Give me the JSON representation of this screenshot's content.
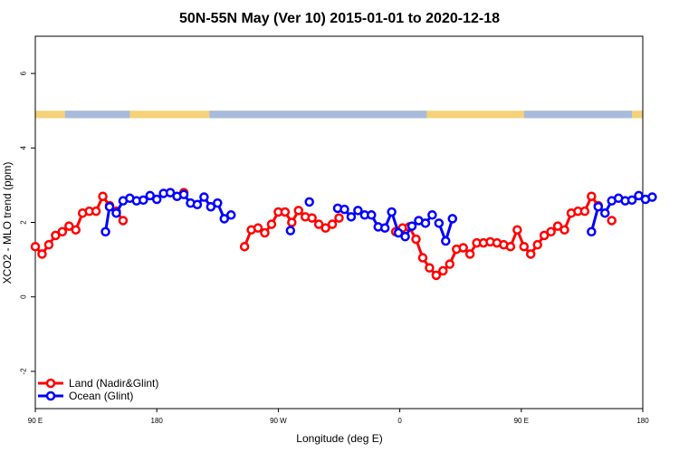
{
  "chart_data": {
    "type": "line",
    "title": "50N-55N May (Ver 10)   2015-01-01 to 2020-12-18",
    "xlabel": "Longitude (deg E)",
    "ylabel": "XCO2 - MLO trend (ppm)",
    "x_tick_labels": [
      "90 E",
      "180",
      "90 W",
      "0",
      "90 E",
      "180"
    ],
    "y_tick_labels": [
      "-2",
      "0",
      "2",
      "4",
      "6"
    ],
    "y_ticks": [
      -2,
      0,
      2,
      4,
      6
    ],
    "ylim": [
      -3,
      7
    ],
    "grid": false,
    "legend_position": "bottom-left",
    "land_mask_band": {
      "y_range": [
        4.8,
        5.0
      ],
      "land_color": "#f5d27a",
      "ocean_color": "#a7bbdc"
    },
    "series": [
      {
        "name": "Land (Nadir&Glint)",
        "color": "#ff0000",
        "segments": [
          {
            "x": [
              90,
              95,
              100,
              105,
              110,
              115,
              120,
              125,
              130,
              135,
              140,
              145,
              150,
              155
            ],
            "y": [
              1.35,
              1.15,
              1.4,
              1.65,
              1.75,
              1.9,
              1.8,
              2.25,
              2.3,
              2.3,
              2.7,
              2.45,
              2.3,
              2.05
            ]
          },
          {
            "x": [
              200
            ],
            "y": [
              2.8
            ]
          },
          {
            "x": [
              245,
              250,
              255,
              260,
              265,
              270,
              275,
              280,
              285,
              290,
              295,
              300,
              305,
              310,
              315
            ],
            "y": [
              1.35,
              1.8,
              1.85,
              1.72,
              1.95,
              2.28,
              2.28,
              2.0,
              2.32,
              2.15,
              2.12,
              1.95,
              1.85,
              1.95,
              2.12
            ]
          },
          {
            "x": [
              357,
              362,
              367,
              372,
              377,
              382,
              387,
              392,
              397,
              402,
              407,
              412,
              417,
              422,
              427,
              432,
              437,
              442,
              447,
              452,
              457,
              462,
              467,
              472,
              477,
              482,
              487,
              492,
              497,
              502,
              507
            ],
            "y": [
              1.75,
              1.85,
              1.88,
              1.55,
              1.05,
              0.78,
              0.58,
              0.7,
              0.88,
              1.28,
              1.32,
              1.15,
              1.45,
              1.45,
              1.48,
              1.45,
              1.4,
              1.35,
              1.8,
              1.35,
              1.15,
              1.4,
              1.65,
              1.75,
              1.9,
              1.8,
              2.25,
              2.3,
              2.3,
              2.7,
              2.45
            ]
          },
          {
            "x": [
              517
            ],
            "y": [
              2.05
            ]
          }
        ]
      },
      {
        "name": "Ocean (Glint)",
        "color": "#0000ff",
        "segments": [
          {
            "x": [
              142,
              145,
              150,
              155,
              160,
              165,
              170,
              175,
              180,
              185,
              190,
              195,
              200,
              205,
              210,
              215,
              220,
              225,
              230,
              235
            ],
            "y": [
              1.75,
              2.42,
              2.25,
              2.58,
              2.65,
              2.58,
              2.6,
              2.72,
              2.62,
              2.78,
              2.8,
              2.7,
              2.75,
              2.52,
              2.48,
              2.68,
              2.42,
              2.52,
              2.1,
              2.2
            ]
          },
          {
            "x": [
              279
            ],
            "y": [
              1.78
            ]
          },
          {
            "x": [
              293
            ],
            "y": [
              2.55
            ]
          },
          {
            "x": [
              314,
              319,
              324,
              329,
              334,
              339,
              344,
              349,
              354,
              359,
              364,
              369,
              374,
              379,
              384
            ],
            "y": [
              2.38,
              2.35,
              2.15,
              2.32,
              2.2,
              2.2,
              1.88,
              1.85,
              2.28,
              1.72,
              1.62,
              1.9,
              2.05,
              1.98,
              2.2
            ]
          },
          {
            "x": [
              389,
              394,
              399
            ],
            "y": [
              1.98,
              1.5,
              2.1
            ]
          },
          {
            "x": [
              502,
              507,
              512,
              517,
              522,
              527,
              532,
              537,
              542,
              547
            ],
            "y": [
              1.75,
              2.42,
              2.25,
              2.58,
              2.65,
              2.58,
              2.6,
              2.72,
              2.62,
              2.68
            ]
          }
        ]
      }
    ]
  }
}
